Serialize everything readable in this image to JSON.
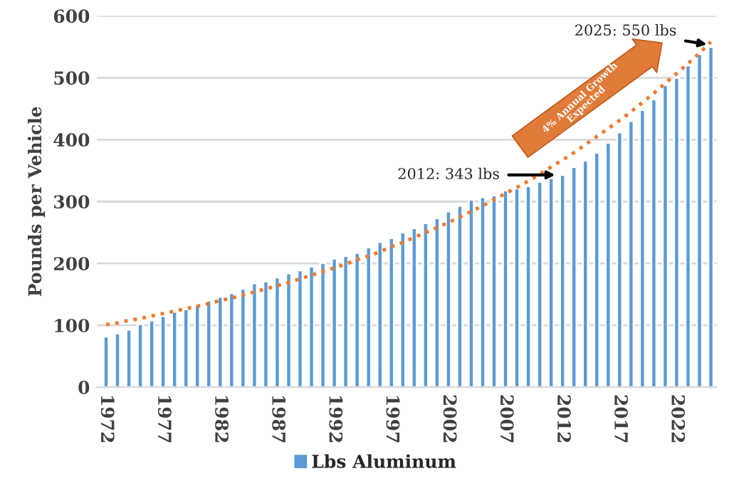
{
  "chart_data": {
    "type": "bar",
    "categories": [
      "1972",
      null,
      null,
      null,
      null,
      "1977",
      null,
      null,
      null,
      null,
      "1982",
      null,
      null,
      null,
      null,
      "1987",
      null,
      null,
      null,
      null,
      "1992",
      null,
      null,
      null,
      null,
      "1997",
      null,
      null,
      null,
      null,
      "2002",
      null,
      null,
      null,
      null,
      "2007",
      null,
      null,
      null,
      null,
      "2012",
      null,
      null,
      null,
      null,
      "2017",
      null,
      null,
      null,
      null,
      "2022",
      null,
      null,
      null
    ],
    "series": [
      {
        "name": "Lbs Aluminum",
        "color": "#5b9bd5",
        "values": [
          82,
          87,
          93,
          102,
          108,
          115,
          122,
          126,
          133,
          140,
          146,
          152,
          159,
          168,
          171,
          177,
          184,
          189,
          195,
          201,
          208,
          212,
          217,
          226,
          235,
          241,
          250,
          257,
          265,
          273,
          284,
          293,
          303,
          307,
          310,
          318,
          321,
          325,
          332,
          338,
          343,
          356,
          366,
          379,
          395,
          412,
          430,
          448,
          465,
          488,
          500,
          520,
          538,
          550
        ]
      },
      {
        "type": "line",
        "color": "#ed7d31",
        "line_style": "dotted",
        "values": [
          101,
          104,
          108,
          111,
          115,
          119,
          123,
          127,
          131,
          135,
          140,
          144,
          149,
          154,
          159,
          164,
          169,
          175,
          181,
          187,
          193,
          199,
          206,
          212,
          219,
          227,
          234,
          242,
          250,
          258,
          266,
          275,
          284,
          293,
          303,
          313,
          323,
          333,
          344,
          356,
          367,
          379,
          392,
          405,
          418,
          431,
          445,
          460,
          475,
          491,
          507,
          523,
          540,
          558
        ]
      }
    ],
    "ylabel": "Pounds per Vehicle",
    "ylim": [
      0,
      600
    ],
    "yticks": [
      0,
      100,
      200,
      300,
      400,
      500,
      600
    ],
    "grid": "y",
    "legend": "bottom",
    "annotations": [
      {
        "text": "2012: 343 lbs",
        "x": "2012",
        "y": 343
      },
      "2025: 550 lbs",
      "4% Annual Growth\nExpected"
    ]
  }
}
